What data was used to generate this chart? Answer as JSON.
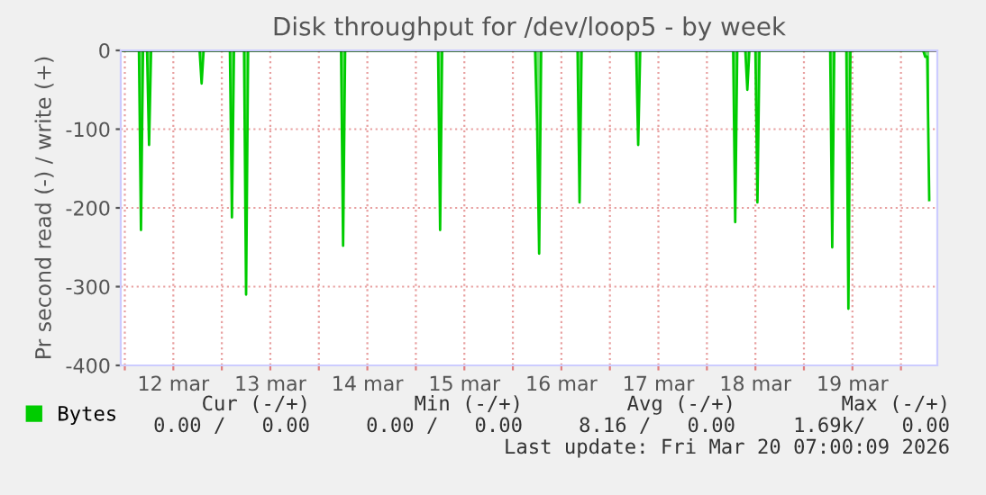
{
  "chart_data": {
    "type": "area",
    "title": "Disk throughput for /dev/loop5 - by week",
    "ylabel": "Pr second read (-) / write (+)",
    "x": [
      "2026-03-11T23:00",
      "2026-03-12T03:30",
      "2026-03-12T04:00",
      "2026-03-12T04:30",
      "2026-03-12T05:30",
      "2026-03-12T06:00",
      "2026-03-12T06:30",
      "2026-03-12T18:30",
      "2026-03-12T19:00",
      "2026-03-12T19:30",
      "2026-03-13T02:00",
      "2026-03-13T02:30",
      "2026-03-13T03:00",
      "2026-03-13T05:30",
      "2026-03-13T06:00",
      "2026-03-13T06:30",
      "2026-03-14T05:30",
      "2026-03-14T06:00",
      "2026-03-14T06:30",
      "2026-03-15T05:30",
      "2026-03-15T06:00",
      "2026-03-15T06:30",
      "2026-03-16T05:30",
      "2026-03-16T06:00",
      "2026-03-16T06:30",
      "2026-03-16T07:00",
      "2026-03-16T16:00",
      "2026-03-16T16:30",
      "2026-03-16T17:00",
      "2026-03-17T06:30",
      "2026-03-17T07:00",
      "2026-03-17T07:30",
      "2026-03-18T06:30",
      "2026-03-18T07:00",
      "2026-03-18T07:30",
      "2026-03-18T09:30",
      "2026-03-18T10:00",
      "2026-03-18T10:30",
      "2026-03-18T12:00",
      "2026-03-18T12:30",
      "2026-03-18T13:00",
      "2026-03-19T06:30",
      "2026-03-19T07:00",
      "2026-03-19T07:30",
      "2026-03-19T10:30",
      "2026-03-19T11:00",
      "2026-03-19T11:30",
      "2026-03-20T05:30",
      "2026-03-20T06:00",
      "2026-03-20T06:30",
      "2026-03-20T07:00"
    ],
    "series": [
      {
        "name": "Bytes",
        "color": "#00cc00",
        "values": [
          0,
          0,
          -228,
          0,
          0,
          -120,
          0,
          0,
          -42,
          0,
          0,
          -212,
          0,
          0,
          -310,
          0,
          0,
          -248,
          0,
          0,
          -228,
          0,
          0,
          -95,
          -258,
          0,
          0,
          -193,
          0,
          0,
          -120,
          0,
          0,
          -218,
          0,
          0,
          -50,
          0,
          0,
          -193,
          0,
          0,
          -250,
          0,
          0,
          -328,
          0,
          0,
          -8,
          -8,
          -190
        ]
      }
    ],
    "xlim": [
      "2026-03-11T23:00",
      "2026-03-20T09:00"
    ],
    "xticks": [
      {
        "value": "2026-03-12T00:00",
        "label": null
      },
      {
        "value": "2026-03-12T12:00",
        "label": "12 mar"
      },
      {
        "value": "2026-03-13T00:00",
        "label": null
      },
      {
        "value": "2026-03-13T12:00",
        "label": "13 mar"
      },
      {
        "value": "2026-03-14T00:00",
        "label": null
      },
      {
        "value": "2026-03-14T12:00",
        "label": "14 mar"
      },
      {
        "value": "2026-03-15T00:00",
        "label": null
      },
      {
        "value": "2026-03-15T12:00",
        "label": "15 mar"
      },
      {
        "value": "2026-03-16T00:00",
        "label": null
      },
      {
        "value": "2026-03-16T12:00",
        "label": "16 mar"
      },
      {
        "value": "2026-03-17T00:00",
        "label": null
      },
      {
        "value": "2026-03-17T12:00",
        "label": "17 mar"
      },
      {
        "value": "2026-03-18T00:00",
        "label": null
      },
      {
        "value": "2026-03-18T12:00",
        "label": "18 mar"
      },
      {
        "value": "2026-03-19T00:00",
        "label": null
      },
      {
        "value": "2026-03-19T12:00",
        "label": "19 mar"
      },
      {
        "value": "2026-03-20T00:00",
        "label": null
      }
    ],
    "ylim": [
      -400,
      0
    ],
    "yticks": [
      -400,
      -300,
      -200,
      -100,
      0
    ],
    "grid": true,
    "legend": "bottom left",
    "annotations": [
      "Cur (-/+)",
      "Min (-/+)",
      "Avg (-/+)",
      "Max (-/+)",
      "0.00 /   0.00",
      "0.00 /   0.00",
      "8.16 /   0.00",
      "1.69k/   0.00",
      "Last update: Fri Mar 20 07:00:09 2026"
    ]
  }
}
